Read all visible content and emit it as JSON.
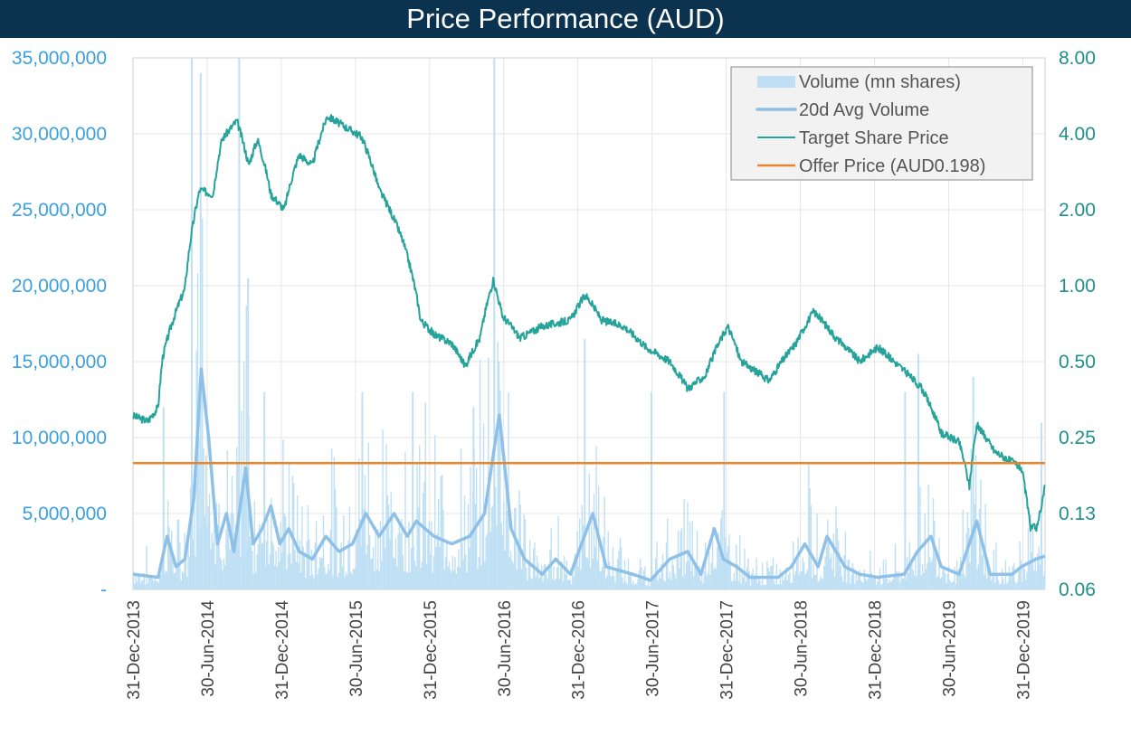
{
  "title": "Price Performance (AUD)",
  "chart_data": {
    "type": "bar+line",
    "title": "Price Performance (AUD)",
    "xlim": [
      2014.0,
      2020.15
    ],
    "x_ticks": [
      2014.0,
      2014.5,
      2015.0,
      2015.5,
      2016.0,
      2016.5,
      2017.0,
      2017.5,
      2018.0,
      2018.5,
      2019.0,
      2019.5,
      2020.0
    ],
    "x_tick_labels": [
      "31-Dec-2013",
      "30-Jun-2014",
      "31-Dec-2014",
      "30-Jun-2015",
      "31-Dec-2015",
      "30-Jun-2016",
      "31-Dec-2016",
      "30-Jun-2017",
      "31-Dec-2017",
      "30-Jun-2018",
      "31-Dec-2018",
      "30-Jun-2019",
      "31-Dec-2019"
    ],
    "left_axis": {
      "ylim": [
        0,
        35000000
      ],
      "scale": "linear",
      "tick_labels": [
        "-",
        "5,000,000",
        "10,000,000",
        "15,000,000",
        "20,000,000",
        "25,000,000",
        "30,000,000",
        "35,000,000"
      ]
    },
    "right_axis": {
      "ylim": [
        0.0625,
        8
      ],
      "scale": "log2",
      "tick_labels": [
        "0.06",
        "0.13",
        "0.25",
        "0.50",
        "1.00",
        "2.00",
        "4.00",
        "8.00"
      ]
    },
    "grid": true,
    "legend_position": "top-right",
    "legend": [
      "Volume (mn shares)",
      "20d Avg Volume",
      "Target Share Price",
      "Offer Price (AUD0.198)"
    ],
    "colors": {
      "volume": "#bfe0f4",
      "avg_volume": "#8ec0e8",
      "price": "#26a39a",
      "offer": "#e8842a",
      "grid": "#e6e6e6"
    },
    "offer_price": 0.198,
    "price": [
      [
        2014.0,
        0.305
      ],
      [
        2014.1,
        0.29
      ],
      [
        2014.17,
        0.33
      ],
      [
        2014.2,
        0.52
      ],
      [
        2014.35,
        0.97
      ],
      [
        2014.45,
        2.4
      ],
      [
        2014.54,
        2.3
      ],
      [
        2014.6,
        3.8
      ],
      [
        2014.7,
        4.5
      ],
      [
        2014.78,
        3.0
      ],
      [
        2014.84,
        3.8
      ],
      [
        2014.93,
        2.3
      ],
      [
        2015.02,
        2.0
      ],
      [
        2015.12,
        3.3
      ],
      [
        2015.21,
        3.0
      ],
      [
        2015.31,
        4.7
      ],
      [
        2015.42,
        4.3
      ],
      [
        2015.54,
        3.9
      ],
      [
        2015.66,
        2.4
      ],
      [
        2015.82,
        1.5
      ],
      [
        2015.94,
        0.73
      ],
      [
        2016.03,
        0.64
      ],
      [
        2016.15,
        0.59
      ],
      [
        2016.24,
        0.48
      ],
      [
        2016.34,
        0.62
      ],
      [
        2016.43,
        1.05
      ],
      [
        2016.49,
        0.76
      ],
      [
        2016.61,
        0.62
      ],
      [
        2016.76,
        0.69
      ],
      [
        2016.95,
        0.73
      ],
      [
        2017.05,
        0.92
      ],
      [
        2017.16,
        0.73
      ],
      [
        2017.31,
        0.69
      ],
      [
        2017.46,
        0.57
      ],
      [
        2017.62,
        0.5
      ],
      [
        2017.74,
        0.39
      ],
      [
        2017.86,
        0.44
      ],
      [
        2018.01,
        0.69
      ],
      [
        2018.1,
        0.5
      ],
      [
        2018.29,
        0.42
      ],
      [
        2018.47,
        0.59
      ],
      [
        2018.59,
        0.79
      ],
      [
        2018.74,
        0.62
      ],
      [
        2018.9,
        0.5
      ],
      [
        2019.02,
        0.57
      ],
      [
        2019.2,
        0.46
      ],
      [
        2019.32,
        0.39
      ],
      [
        2019.45,
        0.26
      ],
      [
        2019.57,
        0.24
      ],
      [
        2019.64,
        0.16
      ],
      [
        2019.69,
        0.28
      ],
      [
        2019.81,
        0.22
      ],
      [
        2019.99,
        0.19
      ],
      [
        2020.05,
        0.11
      ],
      [
        2020.1,
        0.11
      ],
      [
        2020.15,
        0.16
      ]
    ],
    "avg_volume": [
      [
        2014.0,
        1000000
      ],
      [
        2014.17,
        800000
      ],
      [
        2014.23,
        3500000
      ],
      [
        2014.29,
        1500000
      ],
      [
        2014.35,
        2000000
      ],
      [
        2014.41,
        6000000
      ],
      [
        2014.46,
        14500000
      ],
      [
        2014.51,
        10000000
      ],
      [
        2014.57,
        3000000
      ],
      [
        2014.63,
        5000000
      ],
      [
        2014.68,
        2500000
      ],
      [
        2014.76,
        8000000
      ],
      [
        2014.81,
        3000000
      ],
      [
        2014.87,
        4000000
      ],
      [
        2014.93,
        5500000
      ],
      [
        2014.99,
        3000000
      ],
      [
        2015.05,
        4000000
      ],
      [
        2015.12,
        2500000
      ],
      [
        2015.21,
        2000000
      ],
      [
        2015.3,
        3500000
      ],
      [
        2015.39,
        2500000
      ],
      [
        2015.48,
        3000000
      ],
      [
        2015.57,
        5000000
      ],
      [
        2015.66,
        3500000
      ],
      [
        2015.76,
        5000000
      ],
      [
        2015.85,
        3500000
      ],
      [
        2015.91,
        4500000
      ],
      [
        2016.03,
        3500000
      ],
      [
        2016.15,
        3000000
      ],
      [
        2016.27,
        3500000
      ],
      [
        2016.37,
        5000000
      ],
      [
        2016.47,
        11500000
      ],
      [
        2016.55,
        4000000
      ],
      [
        2016.64,
        2000000
      ],
      [
        2016.76,
        1000000
      ],
      [
        2016.85,
        2000000
      ],
      [
        2016.95,
        1000000
      ],
      [
        2017.1,
        5000000
      ],
      [
        2017.19,
        1500000
      ],
      [
        2017.37,
        1000000
      ],
      [
        2017.49,
        600000
      ],
      [
        2017.62,
        2000000
      ],
      [
        2017.74,
        2500000
      ],
      [
        2017.83,
        1000000
      ],
      [
        2017.92,
        4000000
      ],
      [
        2017.98,
        2000000
      ],
      [
        2018.07,
        1500000
      ],
      [
        2018.16,
        800000
      ],
      [
        2018.35,
        800000
      ],
      [
        2018.44,
        1500000
      ],
      [
        2018.53,
        3000000
      ],
      [
        2018.62,
        1500000
      ],
      [
        2018.68,
        3500000
      ],
      [
        2018.8,
        1500000
      ],
      [
        2018.9,
        1000000
      ],
      [
        2019.02,
        800000
      ],
      [
        2019.2,
        1000000
      ],
      [
        2019.29,
        2500000
      ],
      [
        2019.38,
        3500000
      ],
      [
        2019.45,
        1500000
      ],
      [
        2019.57,
        1000000
      ],
      [
        2019.69,
        4500000
      ],
      [
        2019.78,
        1000000
      ],
      [
        2019.93,
        1000000
      ],
      [
        2019.99,
        1500000
      ],
      [
        2020.09,
        2000000
      ],
      [
        2020.15,
        2200000
      ]
    ],
    "volume_spikes": [
      [
        2014.2,
        12000000
      ],
      [
        2014.39,
        35000000
      ],
      [
        2014.45,
        34000000
      ],
      [
        2014.71,
        35000000
      ],
      [
        2014.77,
        20500000
      ],
      [
        2014.88,
        13000000
      ],
      [
        2015.54,
        13000000
      ],
      [
        2015.88,
        13000000
      ],
      [
        2016.29,
        12000000
      ],
      [
        2016.43,
        35000000
      ],
      [
        2016.46,
        15000000
      ],
      [
        2017.04,
        16500000
      ],
      [
        2017.49,
        13000000
      ],
      [
        2017.98,
        13000000
      ],
      [
        2019.2,
        13000000
      ],
      [
        2019.29,
        15500000
      ],
      [
        2019.66,
        14000000
      ],
      [
        2020.12,
        11000000
      ]
    ]
  }
}
